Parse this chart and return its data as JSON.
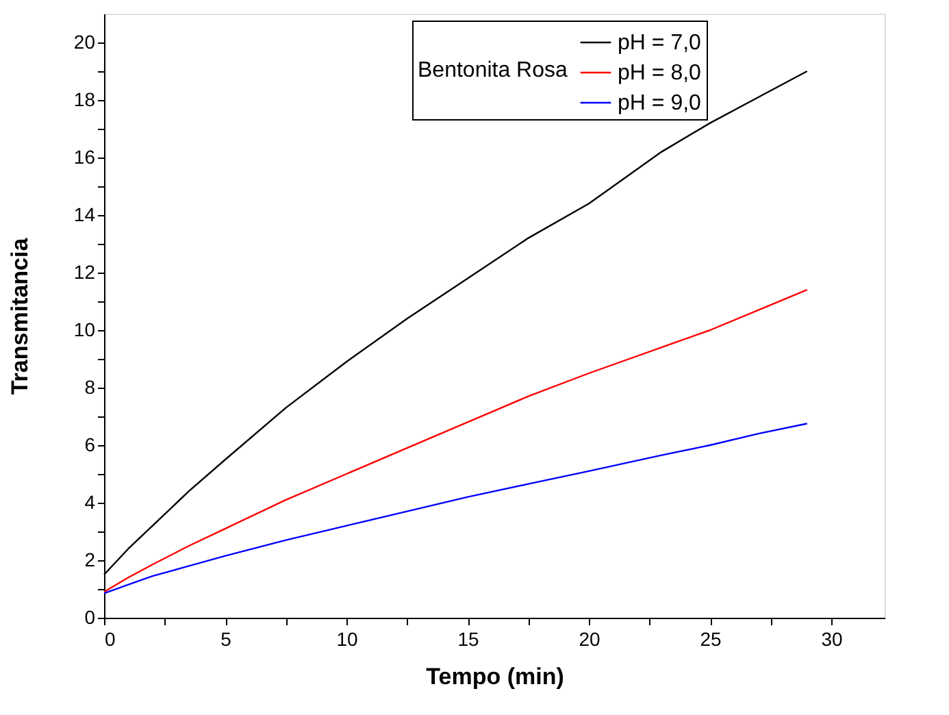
{
  "chart_data": {
    "type": "line",
    "xlabel": "Tempo (min)",
    "ylabel": "Transmitancia",
    "legend_title": "Bentonita Rosa",
    "x": [
      0,
      1,
      2,
      3.5,
      5,
      7.5,
      10,
      12.5,
      15,
      17.5,
      20,
      23,
      25,
      27,
      29
    ],
    "series": [
      {
        "name": "pH = 7,0",
        "color": "#000000",
        "values": [
          1.5,
          2.4,
          3.2,
          4.4,
          5.5,
          7.3,
          8.9,
          10.4,
          11.8,
          13.2,
          14.4,
          16.2,
          17.2,
          18.1,
          19.0
        ]
      },
      {
        "name": "pH = 8,0",
        "color": "#ff0000",
        "values": [
          0.9,
          1.4,
          1.85,
          2.5,
          3.1,
          4.1,
          5.0,
          5.9,
          6.8,
          7.7,
          8.5,
          9.4,
          10.0,
          10.7,
          11.4
        ]
      },
      {
        "name": "pH = 9,0",
        "color": "#0000ff",
        "values": [
          0.85,
          1.15,
          1.45,
          1.8,
          2.15,
          2.7,
          3.2,
          3.7,
          4.2,
          4.65,
          5.1,
          5.65,
          6.0,
          6.4,
          6.75
        ]
      }
    ],
    "xlim": [
      0,
      32.2
    ],
    "ylim": [
      0,
      21
    ],
    "xticks": [
      0,
      {
        "value": 2.5,
        "label": null
      },
      5,
      {
        "value": 7.5,
        "label": null
      },
      10,
      {
        "value": 12.5,
        "label": null
      },
      15,
      {
        "value": 17.5,
        "label": null
      },
      20,
      {
        "value": 22.5,
        "label": null
      },
      25,
      {
        "value": 27.5,
        "label": null
      },
      30
    ],
    "yticks": [
      0,
      {
        "value": 1,
        "label": null
      },
      2,
      {
        "value": 3,
        "label": null
      },
      4,
      {
        "value": 5,
        "label": null
      },
      6,
      {
        "value": 7,
        "label": null
      },
      8,
      {
        "value": 9,
        "label": null
      },
      10,
      {
        "value": 11,
        "label": null
      },
      12,
      {
        "value": 13,
        "label": null
      },
      14,
      {
        "value": 15,
        "label": null
      },
      16,
      {
        "value": 17,
        "label": null
      },
      18,
      {
        "value": 19,
        "label": null
      },
      20
    ],
    "grid": false,
    "legend": "top",
    "marker": "none",
    "line_style": "solid"
  }
}
